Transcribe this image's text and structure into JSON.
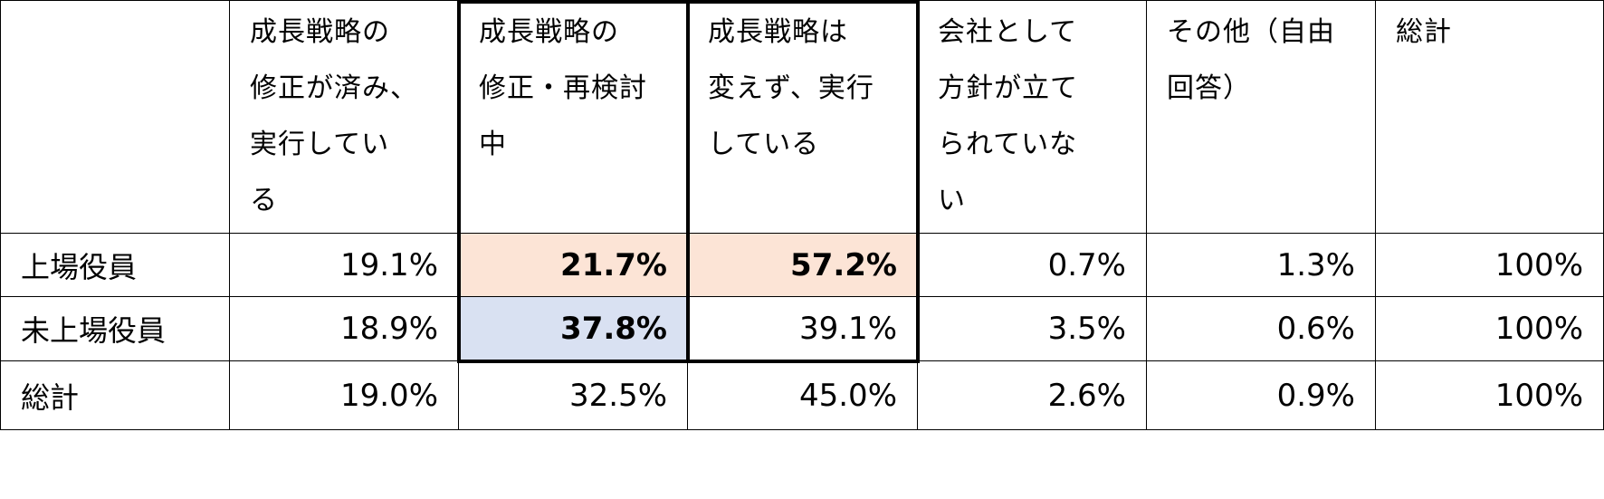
{
  "table": {
    "header": [
      [],
      [
        "成長戦略の",
        "修正が済み、",
        "実行してい",
        "る"
      ],
      [
        "成長戦略の",
        "修正・再検討",
        "中"
      ],
      [
        "成長戦略は",
        "変えず、実行",
        "している"
      ],
      [
        "会社として",
        "方針が立て",
        "られていな",
        "い"
      ],
      [
        "その他（自由",
        "回答）"
      ],
      [
        "総計"
      ]
    ],
    "rows": [
      [
        "上場役員",
        "19.1%",
        "21.7%",
        "57.2%",
        "0.7%",
        "1.3%",
        "100%"
      ],
      [
        "未上場役員",
        "18.9%",
        "37.8%",
        "39.1%",
        "3.5%",
        "0.6%",
        "100%"
      ],
      [
        "総計",
        "19.0%",
        "32.5%",
        "45.0%",
        "2.6%",
        "0.9%",
        "100%"
      ]
    ]
  }
}
